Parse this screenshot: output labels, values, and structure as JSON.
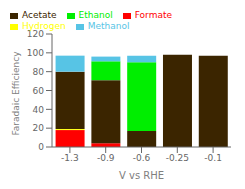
{
  "chart_data": {
    "type": "bar",
    "stacked": true,
    "categories": [
      "-1.3",
      "-0.9",
      "-0.6",
      "-0.25",
      "-0.1"
    ],
    "series": [
      {
        "name": "Formate",
        "color": "#FF0000",
        "values": [
          18,
          4,
          0,
          0,
          0
        ]
      },
      {
        "name": "Hydrogen",
        "color": "#FFFF00",
        "values": [
          1,
          0,
          0,
          0,
          0
        ]
      },
      {
        "name": "Acetate",
        "color": "#3B2500",
        "values": [
          61,
          67,
          17,
          98,
          97
        ]
      },
      {
        "name": "Ethanol",
        "color": "#00EE00",
        "values": [
          0,
          20,
          73,
          0,
          0
        ]
      },
      {
        "name": "Methanol",
        "color": "#57C4E5",
        "values": [
          17,
          5,
          7,
          0,
          0
        ]
      }
    ],
    "xlabel": "V vs RHE",
    "ylabel": "Faradaic Efficiency",
    "ylim": [
      0,
      120
    ],
    "yticks": [
      0,
      20,
      40,
      60,
      80,
      100,
      120
    ],
    "grid": false,
    "legend": "upper left"
  }
}
